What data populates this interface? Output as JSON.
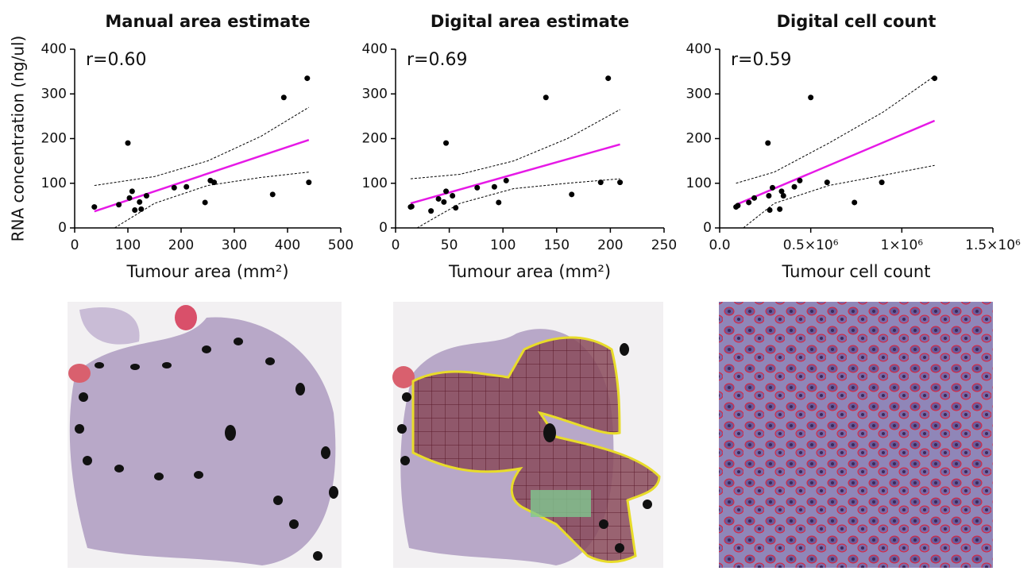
{
  "chart_data": [
    {
      "type": "scatter",
      "title": "Manual area estimate",
      "x_label": "Tumour area (mm²)",
      "y_label": "RNA concentration (ng/ul)",
      "annotation": "r=0.60",
      "xlim": [
        0,
        500
      ],
      "xticks": [
        0,
        100,
        200,
        300,
        400,
        500
      ],
      "ylim": [
        0,
        400
      ],
      "yticks": [
        0,
        100,
        200,
        300,
        400
      ],
      "points": {
        "color": "#000000",
        "x": [
          37,
          83,
          100,
          103,
          108,
          113,
          122,
          125,
          135,
          187,
          210,
          245,
          255,
          262,
          372,
          393,
          437,
          440
        ],
        "y": [
          47,
          52,
          190,
          67,
          82,
          40,
          58,
          42,
          72,
          90,
          92,
          57,
          106,
          102,
          75,
          292,
          335,
          102
        ]
      },
      "fit": {
        "color": "#e619e6",
        "x": [
          37,
          440
        ],
        "y": [
          37,
          197
        ]
      },
      "ci_upper": {
        "color": "#000000",
        "x": [
          37,
          150,
          250,
          350,
          440
        ],
        "y": [
          95,
          115,
          150,
          205,
          270
        ]
      },
      "ci_lower": {
        "color": "#000000",
        "x": [
          75,
          150,
          250,
          350,
          440
        ],
        "y": [
          0,
          55,
          95,
          113,
          125
        ]
      }
    },
    {
      "type": "scatter",
      "title": "Digital area estimate",
      "x_label": "Tumour area (mm²)",
      "annotation": "r=0.69",
      "xlim": [
        0,
        250
      ],
      "xticks": [
        0,
        50,
        100,
        150,
        200,
        250
      ],
      "ylim": [
        0,
        400
      ],
      "yticks": [
        0,
        100,
        200,
        300,
        400
      ],
      "points": {
        "color": "#000000",
        "x": [
          14,
          15,
          33,
          40,
          45,
          47,
          47,
          53,
          56,
          76,
          92,
          96,
          103,
          140,
          164,
          191,
          198,
          209
        ],
        "y": [
          47,
          48,
          38,
          65,
          58,
          82,
          190,
          72,
          45,
          90,
          92,
          57,
          106,
          292,
          75,
          102,
          335,
          102
        ]
      },
      "fit": {
        "color": "#e619e6",
        "x": [
          14,
          209
        ],
        "y": [
          55,
          187
        ]
      },
      "ci_upper": {
        "color": "#000000",
        "x": [
          14,
          60,
          110,
          160,
          209
        ],
        "y": [
          110,
          120,
          150,
          200,
          265
        ]
      },
      "ci_lower": {
        "color": "#000000",
        "x": [
          20,
          60,
          110,
          160,
          209
        ],
        "y": [
          0,
          55,
          88,
          100,
          110
        ]
      }
    },
    {
      "type": "scatter",
      "title": "Digital cell count",
      "x_label": "Tumour cell count",
      "annotation": "r=0.59",
      "xlim": [
        0,
        1500000
      ],
      "xticks": [
        {
          "value": 0,
          "label": "0.0"
        },
        {
          "value": 500000,
          "label": "0.5×10⁶"
        },
        {
          "value": 1000000,
          "label": "1×10⁶"
        },
        {
          "value": 1500000,
          "label": "1.5×10⁶"
        }
      ],
      "ylim": [
        0,
        400
      ],
      "yticks": [
        0,
        100,
        200,
        300,
        400
      ],
      "points": {
        "color": "#000000",
        "x": [
          90000,
          100000,
          160000,
          190000,
          265000,
          270000,
          275000,
          290000,
          330000,
          340000,
          350000,
          410000,
          440000,
          500000,
          590000,
          740000,
          890000,
          1180000
        ],
        "y": [
          47,
          50,
          57,
          67,
          190,
          72,
          40,
          90,
          42,
          82,
          72,
          92,
          106,
          292,
          102,
          57,
          102,
          335
        ]
      },
      "fit": {
        "color": "#e619e6",
        "x": [
          90000,
          1180000
        ],
        "y": [
          52,
          240
        ]
      },
      "ci_upper": {
        "color": "#000000",
        "x": [
          90000,
          300000,
          600000,
          900000,
          1180000
        ],
        "y": [
          100,
          125,
          190,
          260,
          340
        ]
      },
      "ci_lower": {
        "color": "#000000",
        "x": [
          130000,
          300000,
          600000,
          900000,
          1180000
        ],
        "y": [
          0,
          55,
          95,
          118,
          140
        ]
      }
    }
  ]
}
